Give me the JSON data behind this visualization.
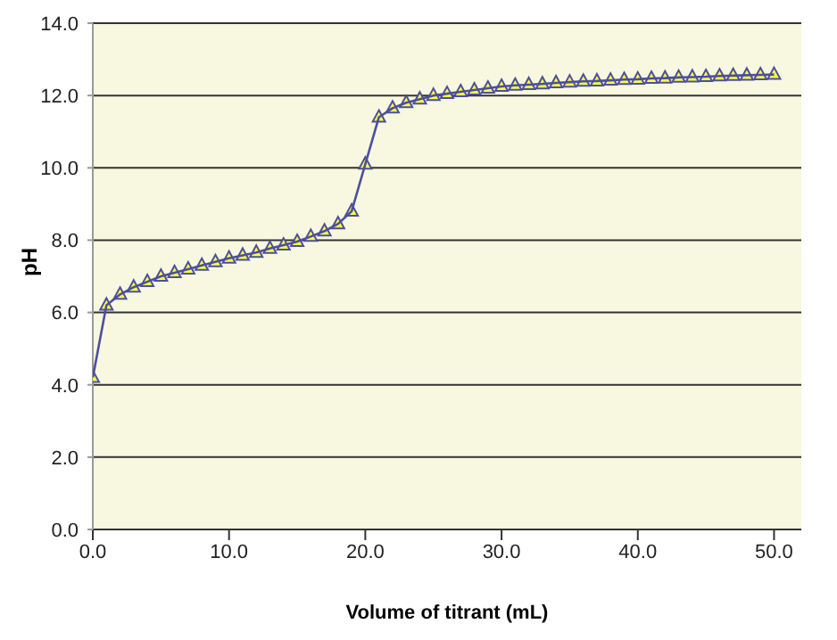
{
  "chart_data": {
    "type": "line",
    "xlabel": "Volume of titrant (mL)",
    "ylabel": "pH",
    "x": [
      0,
      1,
      2,
      3,
      4,
      5,
      6,
      7,
      8,
      9,
      10,
      11,
      12,
      13,
      14,
      15,
      16,
      17,
      18,
      19,
      20,
      21,
      22,
      23,
      24,
      25,
      26,
      27,
      28,
      29,
      30,
      31,
      32,
      33,
      34,
      35,
      36,
      37,
      38,
      39,
      40,
      41,
      42,
      43,
      44,
      45,
      46,
      47,
      48,
      49,
      50
    ],
    "series": [
      {
        "color": "#4b4f9e",
        "values": [
          4.2,
          6.2,
          6.5,
          6.7,
          6.85,
          7.0,
          7.1,
          7.2,
          7.3,
          7.4,
          7.5,
          7.58,
          7.66,
          7.77,
          7.86,
          7.96,
          8.1,
          8.25,
          8.45,
          8.8,
          10.1,
          11.4,
          11.65,
          11.8,
          11.9,
          12.0,
          12.05,
          12.1,
          12.15,
          12.2,
          12.25,
          12.28,
          12.3,
          12.32,
          12.35,
          12.37,
          12.39,
          12.4,
          12.42,
          12.44,
          12.45,
          12.47,
          12.48,
          12.5,
          12.51,
          12.52,
          12.54,
          12.55,
          12.56,
          12.57,
          12.58
        ]
      }
    ],
    "xlim": [
      0,
      52
    ],
    "xticks": [
      {
        "value": 0,
        "label": "0.0"
      },
      {
        "value": 10,
        "label": "10.0"
      },
      {
        "value": 20,
        "label": "20.0"
      },
      {
        "value": 30,
        "label": "30.0"
      },
      {
        "value": 40,
        "label": "40.0"
      },
      {
        "value": 50,
        "label": "50.0"
      }
    ],
    "ylim": [
      0,
      14
    ],
    "yticks": [
      {
        "value": 0,
        "label": "0.0"
      },
      {
        "value": 2,
        "label": "2.0"
      },
      {
        "value": 4,
        "label": "4.0"
      },
      {
        "value": 6,
        "label": "6.0"
      },
      {
        "value": 8,
        "label": "8.0"
      },
      {
        "value": 10,
        "label": "10.0"
      },
      {
        "value": 12,
        "label": "12.0"
      },
      {
        "value": 14,
        "label": "14.0"
      }
    ],
    "grid": "y",
    "marker": "triangle",
    "line_style": "solid"
  }
}
